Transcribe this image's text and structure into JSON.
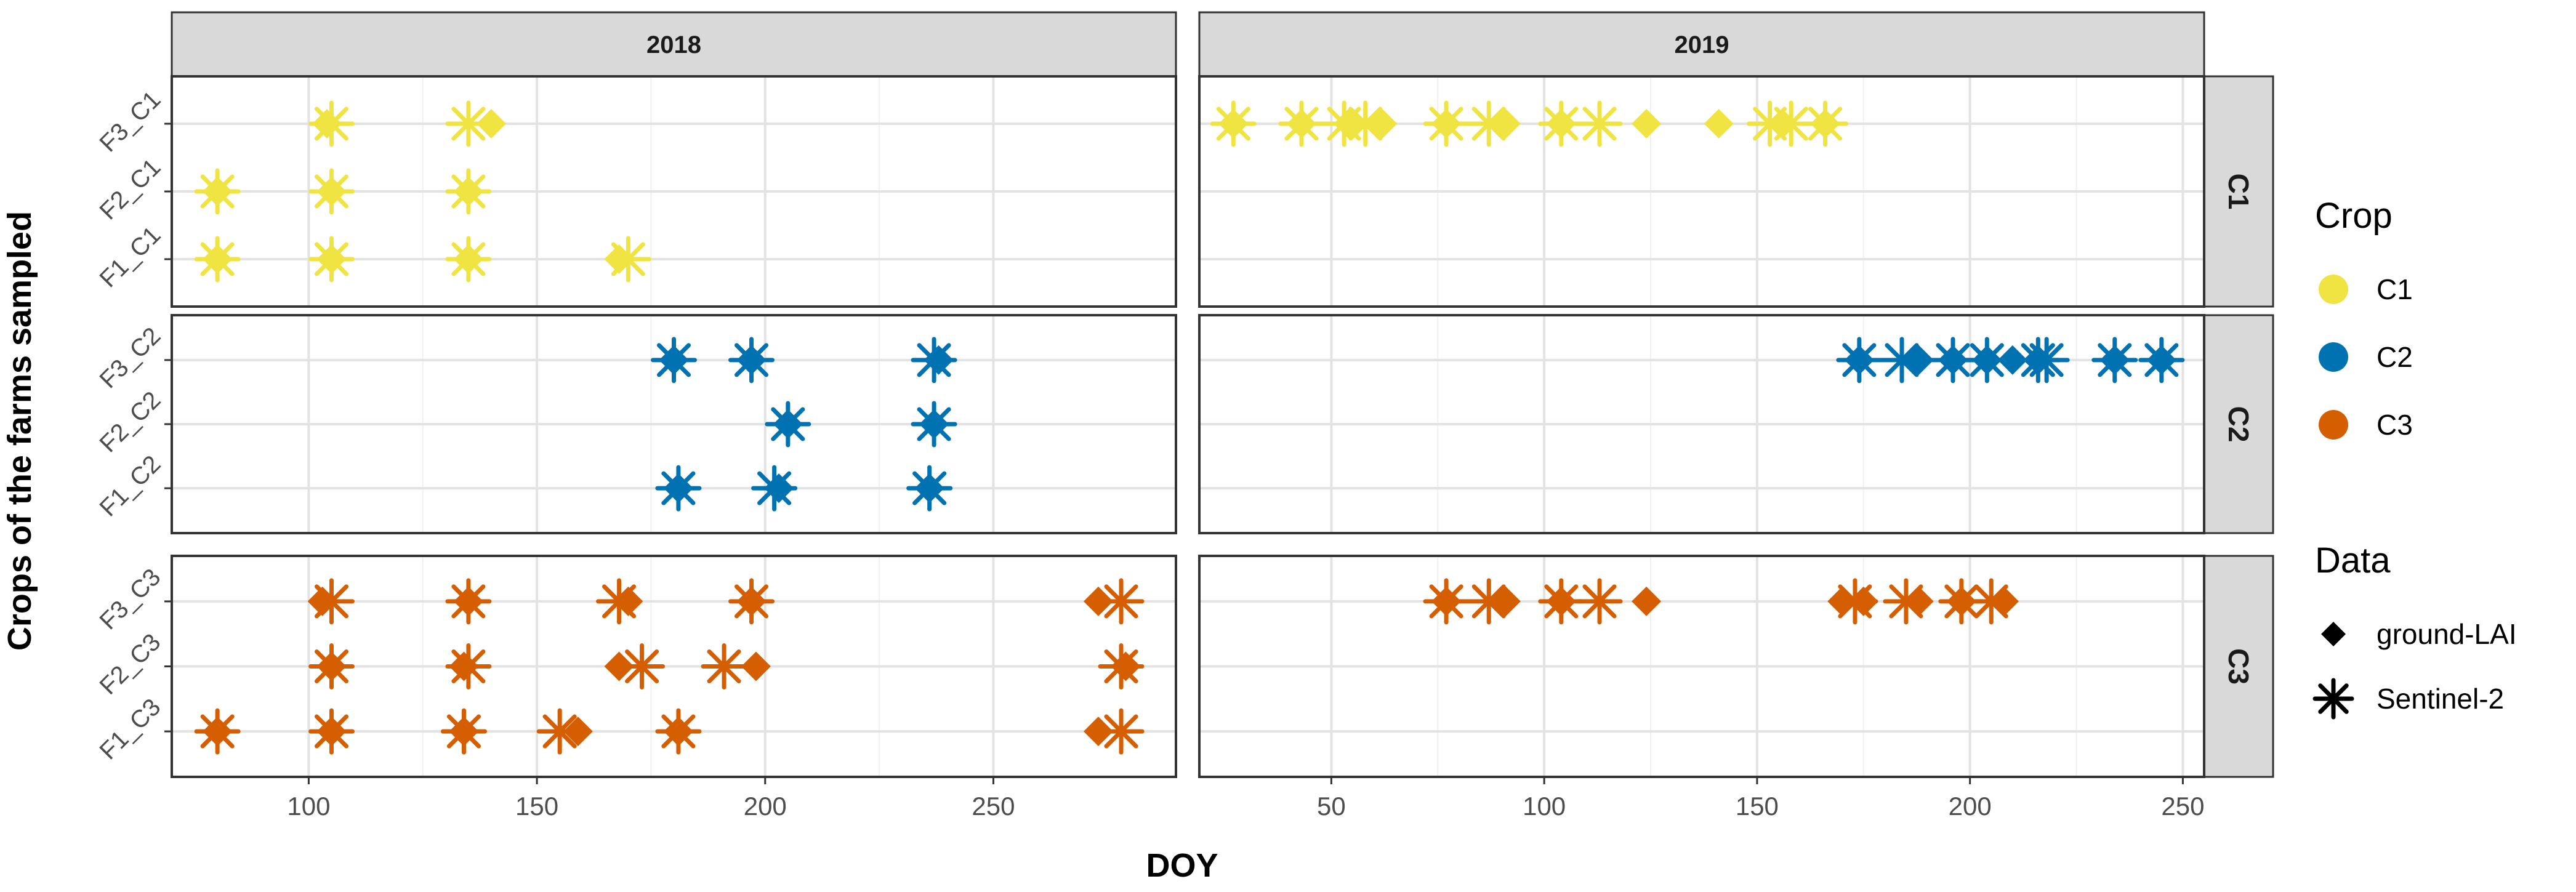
{
  "chart_data": {
    "type": "scatter",
    "title": "",
    "xlabel": "DOY",
    "ylabel": "Crops of the farms sampled",
    "colors": {
      "C1": "#F0E442",
      "C2": "#0072B2",
      "C3": "#D55E00"
    },
    "col_facets": [
      {
        "label": "2018",
        "xlim": [
          70,
          290
        ],
        "ticks": [
          100,
          150,
          200,
          250
        ],
        "tick_labels": [
          "100",
          "150",
          "200",
          "250"
        ]
      },
      {
        "label": "2019",
        "xlim": [
          19,
          255
        ],
        "ticks": [
          50,
          100,
          150,
          200,
          250
        ],
        "tick_labels": [
          "50",
          "100",
          "150",
          "200",
          "250"
        ]
      }
    ],
    "row_facets": [
      {
        "label": "C1",
        "crop": "C1",
        "categories": [
          "F1_C1",
          "F2_C1",
          "F3_C1"
        ]
      },
      {
        "label": "C2",
        "crop": "C2",
        "categories": [
          "F1_C2",
          "F2_C2",
          "F3_C2"
        ]
      },
      {
        "label": "C3",
        "crop": "C3",
        "categories": [
          "F1_C3",
          "F2_C3",
          "F3_C3"
        ]
      }
    ],
    "series": [
      {
        "name": "ground-LAI",
        "shape": "diamond",
        "points": [
          {
            "year": "2018",
            "crop": "C1",
            "y": "F3_C1",
            "x": [
              104,
              140
            ]
          },
          {
            "year": "2018",
            "crop": "C1",
            "y": "F2_C1",
            "x": [
              80,
              105,
              135
            ]
          },
          {
            "year": "2018",
            "crop": "C1",
            "y": "F1_C1",
            "x": [
              80,
              105,
              135,
              168
            ]
          },
          {
            "year": "2018",
            "crop": "C2",
            "y": "F3_C2",
            "x": [
              180,
              197,
              238
            ]
          },
          {
            "year": "2018",
            "crop": "C2",
            "y": "F2_C2",
            "x": [
              205,
              237
            ]
          },
          {
            "year": "2018",
            "crop": "C2",
            "y": "F1_C2",
            "x": [
              181,
              203,
              236
            ]
          },
          {
            "year": "2018",
            "crop": "C3",
            "y": "F3_C3",
            "x": [
              103,
              135,
              170,
              197,
              273
            ]
          },
          {
            "year": "2018",
            "crop": "C3",
            "y": "F2_C3",
            "x": [
              105,
              134,
              168,
              198,
              279
            ]
          },
          {
            "year": "2018",
            "crop": "C3",
            "y": "F1_C3",
            "x": [
              80,
              105,
              134,
              159,
              181,
              273
            ]
          },
          {
            "year": "2019",
            "crop": "C1",
            "y": "F3_C1",
            "x": [
              27,
              43,
              54,
              62,
              77,
              91,
              104,
              124,
              141,
              156,
              166
            ]
          },
          {
            "year": "2019",
            "crop": "C2",
            "y": "F3_C2",
            "x": [
              174,
              188,
              196,
              204,
              210,
              216,
              234,
              245
            ]
          },
          {
            "year": "2019",
            "crop": "C3",
            "y": "F3_C3",
            "x": [
              77,
              91,
              104,
              124,
              170,
              175,
              188,
              198,
              208
            ]
          }
        ]
      },
      {
        "name": "Sentinel-2",
        "shape": "asterisk",
        "points": [
          {
            "year": "2018",
            "crop": "C1",
            "y": "F3_C1",
            "x": [
              105,
              135
            ]
          },
          {
            "year": "2018",
            "crop": "C1",
            "y": "F2_C1",
            "x": [
              80,
              105,
              135
            ]
          },
          {
            "year": "2018",
            "crop": "C1",
            "y": "F1_C1",
            "x": [
              80,
              105,
              135,
              170
            ]
          },
          {
            "year": "2018",
            "crop": "C2",
            "y": "F3_C2",
            "x": [
              180,
              197,
              237
            ]
          },
          {
            "year": "2018",
            "crop": "C2",
            "y": "F2_C2",
            "x": [
              205,
              237
            ]
          },
          {
            "year": "2018",
            "crop": "C2",
            "y": "F1_C2",
            "x": [
              181,
              202,
              236
            ]
          },
          {
            "year": "2018",
            "crop": "C3",
            "y": "F3_C3",
            "x": [
              105,
              135,
              168,
              197,
              278
            ]
          },
          {
            "year": "2018",
            "crop": "C3",
            "y": "F2_C3",
            "x": [
              105,
              135,
              173,
              191,
              278
            ]
          },
          {
            "year": "2018",
            "crop": "C3",
            "y": "F1_C3",
            "x": [
              80,
              105,
              134,
              155,
              181,
              278
            ]
          },
          {
            "year": "2019",
            "crop": "C1",
            "y": "F3_C1",
            "x": [
              27,
              43,
              53,
              58,
              77,
              87,
              104,
              113,
              153,
              158,
              166
            ]
          },
          {
            "year": "2019",
            "crop": "C2",
            "y": "F3_C2",
            "x": [
              174,
              184,
              196,
              204,
              216,
              218,
              234,
              245
            ]
          },
          {
            "year": "2019",
            "crop": "C3",
            "y": "F3_C3",
            "x": [
              77,
              87,
              104,
              113,
              173,
              185,
              198,
              205
            ]
          }
        ]
      }
    ],
    "legend": {
      "placement": "right",
      "crop": {
        "title": "Crop",
        "items": [
          "C1",
          "C2",
          "C3"
        ]
      },
      "data": {
        "title": "Data",
        "items": [
          "ground-LAI",
          "Sentinel-2"
        ]
      }
    }
  }
}
